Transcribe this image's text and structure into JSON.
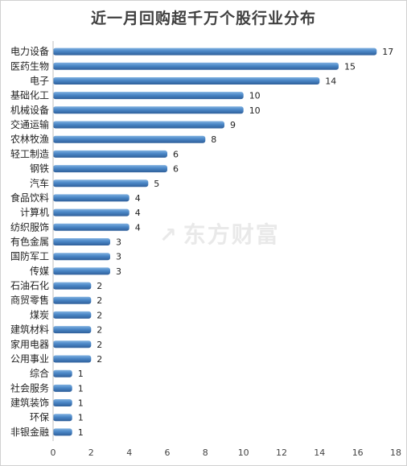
{
  "chart_data": {
    "type": "bar",
    "orientation": "horizontal",
    "title": "近一月回购超千万个股行业分布",
    "categories": [
      "电力设备",
      "医药生物",
      "电子",
      "基础化工",
      "机械设备",
      "交通运输",
      "农林牧渔",
      "轻工制造",
      "钢铁",
      "汽车",
      "食品饮料",
      "计算机",
      "纺织服饰",
      "有色金属",
      "国防军工",
      "传媒",
      "石油石化",
      "商贸零售",
      "煤炭",
      "建筑材料",
      "家用电器",
      "公用事业",
      "综合",
      "社会服务",
      "建筑装饰",
      "环保",
      "非银金融"
    ],
    "values": [
      17,
      15,
      14,
      10,
      10,
      9,
      8,
      6,
      6,
      5,
      4,
      4,
      4,
      3,
      3,
      3,
      2,
      2,
      2,
      2,
      2,
      2,
      1,
      1,
      1,
      1,
      1
    ],
    "xlim": [
      0,
      18
    ],
    "xticks": [
      0,
      2,
      4,
      6,
      8,
      10,
      12,
      14,
      16,
      18
    ],
    "grid": false,
    "legend": "none",
    "bar_color": "#4a86c6"
  },
  "watermark": "东方财富"
}
